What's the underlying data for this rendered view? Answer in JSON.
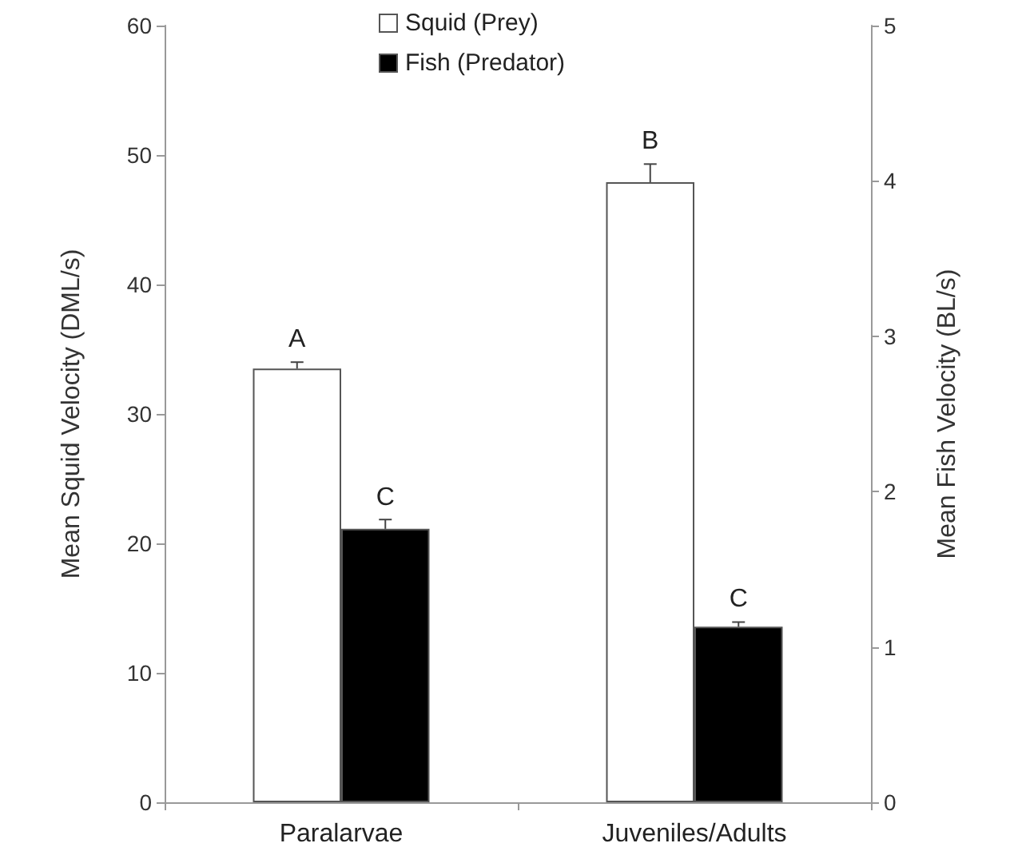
{
  "chart_data": {
    "type": "bar",
    "categories": [
      "Paralarvae",
      "Juveniles/Adults"
    ],
    "series": [
      {
        "name": "Squid (Prey)",
        "color": "#ffffff",
        "values": [
          33.5,
          47.9
        ],
        "errors": [
          [
            33.5,
            34.0
          ],
          [
            47.9,
            49.3
          ]
        ]
      },
      {
        "name": "Fish (Predator)",
        "color": "#000000",
        "axis": "y2",
        "values": [
          1.76,
          1.13
        ],
        "errors": [
          [
            1.76,
            1.82
          ],
          [
            1.13,
            1.16
          ]
        ]
      }
    ],
    "ylabel": "Mean Squid Velocity (DML/s)",
    "y2label": "Mean Fish Velocity (BL/s)",
    "ylim": [
      0,
      60
    ],
    "yticks": [
      0,
      10,
      20,
      30,
      40,
      50,
      60
    ],
    "y2lim": [
      0,
      5
    ],
    "y2ticks": [
      0,
      1,
      2,
      3,
      4,
      5
    ],
    "annotations": [
      {
        "text": "A",
        "x": "Paralarvae",
        "y": 33.5
      },
      {
        "text": "C",
        "x": "Paralarvae",
        "y": 21.1
      },
      {
        "text": "B",
        "x": "Juveniles/Adults",
        "y": 47.9
      },
      {
        "text": "C",
        "x": "Juveniles/Adults",
        "y": 13.6
      }
    ],
    "legend": "top",
    "grid": false
  }
}
